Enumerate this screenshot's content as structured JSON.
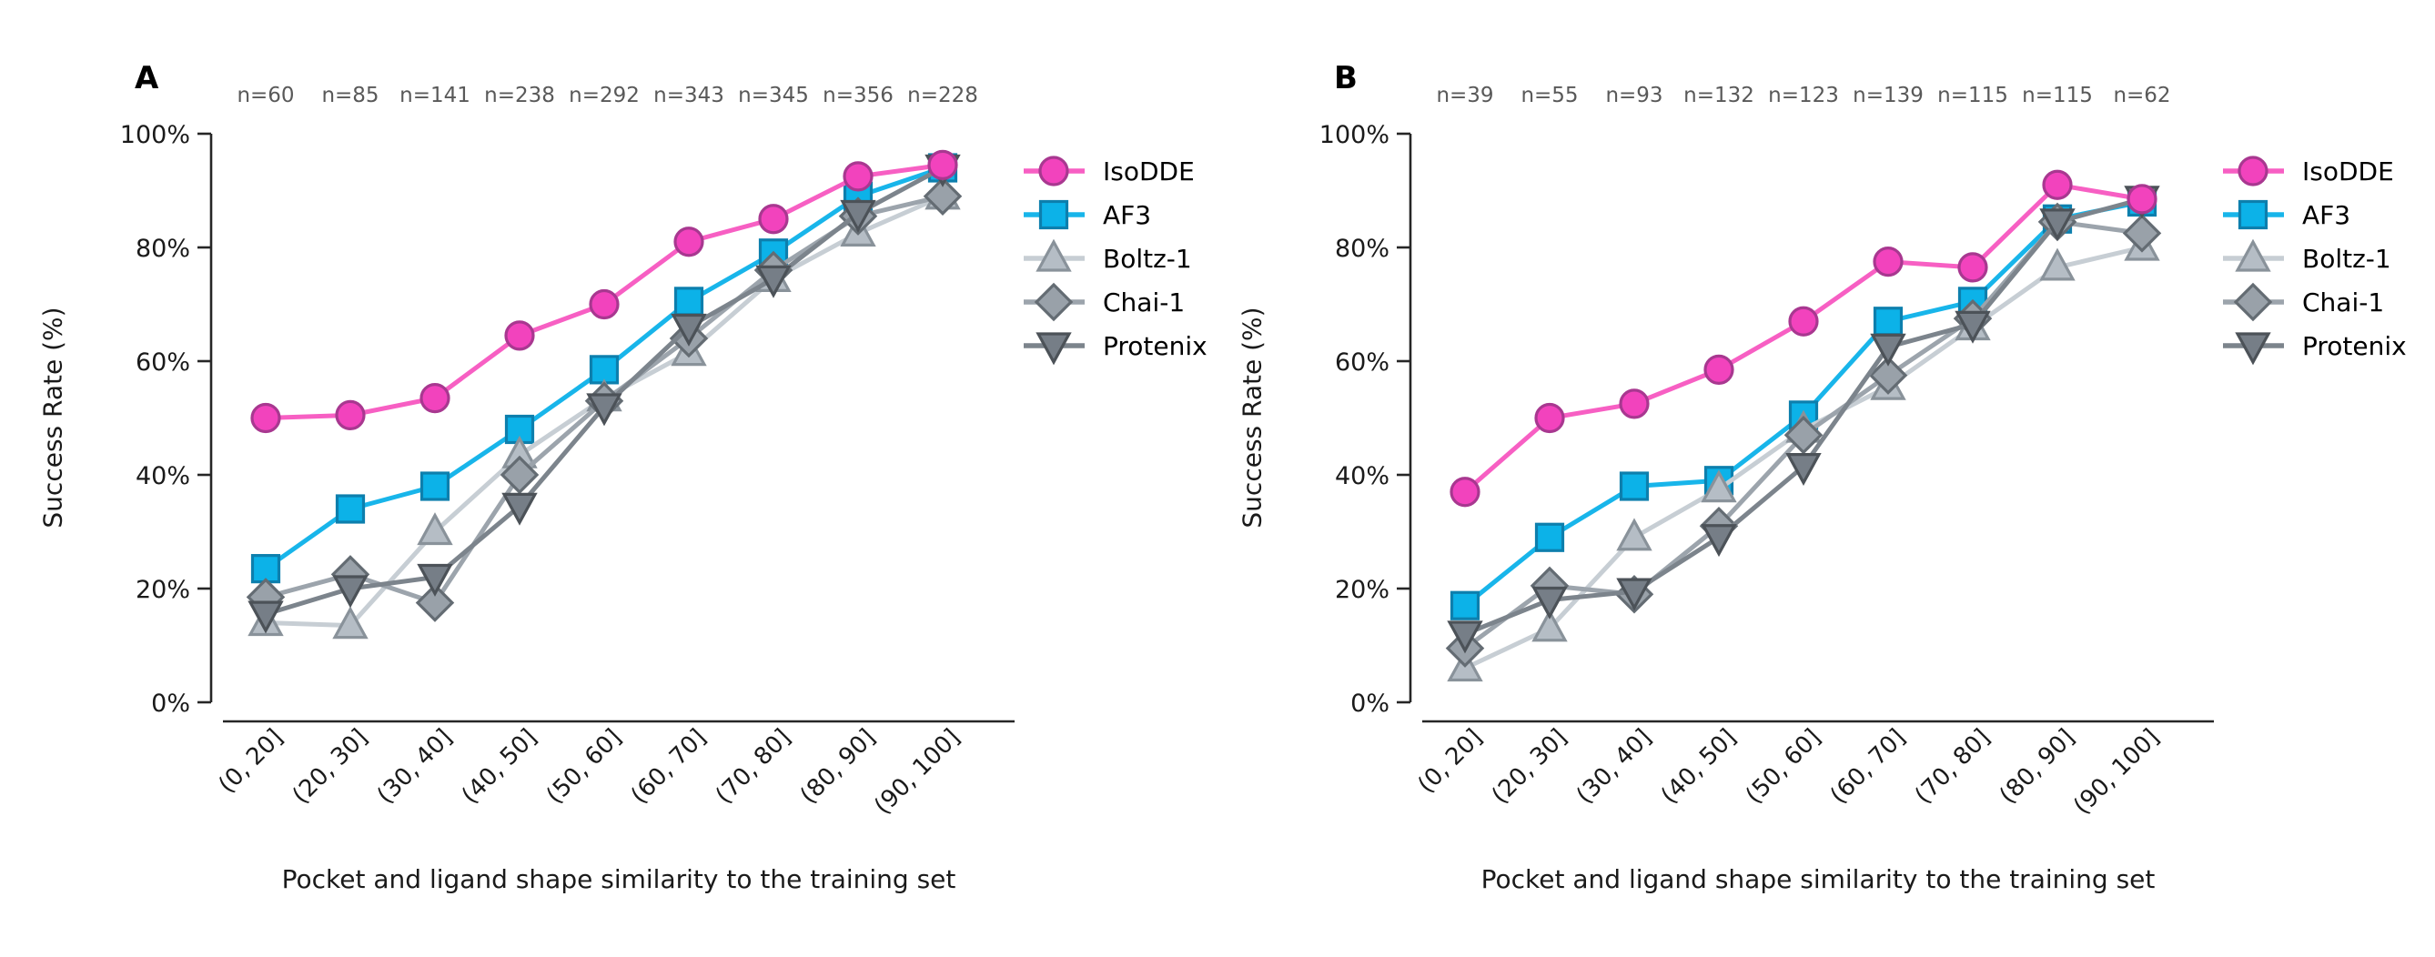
{
  "figure": {
    "ylabel": "Success Rate (%)",
    "xlabel": "Pocket and ligand shape similarity to the training set",
    "background": "#ffffff",
    "axis_color": "#262626",
    "n_label_color": "#595959",
    "legend_position": "right",
    "grid": false,
    "series_meta": [
      {
        "name": "IsoDDE",
        "marker": "circle",
        "line_color": "#f75fc3",
        "fill_color": "#f243bd",
        "edge_color": "#a83890"
      },
      {
        "name": "AF3",
        "marker": "square",
        "line_color": "#18b5ea",
        "fill_color": "#0cb2e8",
        "edge_color": "#0d7fad"
      },
      {
        "name": "Boltz-1",
        "marker": "triangle-up",
        "line_color": "#c7ced4",
        "fill_color": "#b5bdc5",
        "edge_color": "#89929a"
      },
      {
        "name": "Chai-1",
        "marker": "diamond",
        "line_color": "#9ca4ac",
        "fill_color": "#99a1a9",
        "edge_color": "#646c73"
      },
      {
        "name": "Protenix",
        "marker": "triangle-down",
        "line_color": "#7c848c",
        "fill_color": "#767e87",
        "edge_color": "#4c5258"
      }
    ],
    "draw_order": [
      "AF3",
      "Boltz-1",
      "Chai-1",
      "Protenix",
      "IsoDDE"
    ]
  },
  "chart_data": [
    {
      "panel": "A",
      "type": "line",
      "title": "",
      "xlabel": "Pocket and ligand shape similarity to the training set",
      "ylabel": "Success Rate (%)",
      "ylim": [
        0,
        100
      ],
      "yticks": [
        0,
        20,
        40,
        60,
        80,
        100
      ],
      "ytick_labels": [
        "0%",
        "20%",
        "40%",
        "60%",
        "80%",
        "100%"
      ],
      "categories": [
        "(0, 20]",
        "(20, 30]",
        "(30, 40]",
        "(40, 50]",
        "(50, 60]",
        "(60, 70]",
        "(70, 80]",
        "(80, 90]",
        "(90, 100]"
      ],
      "n_labels": [
        "n=60",
        "n=85",
        "n=141",
        "n=238",
        "n=292",
        "n=343",
        "n=345",
        "n=356",
        "n=228"
      ],
      "series": [
        {
          "name": "IsoDDE",
          "values": [
            50,
            50.5,
            53.5,
            64.5,
            70,
            81,
            85,
            92.5,
            94.5
          ]
        },
        {
          "name": "AF3",
          "values": [
            23.5,
            34,
            38,
            48,
            58.5,
            70.5,
            79,
            89,
            94
          ]
        },
        {
          "name": "Boltz-1",
          "values": [
            14,
            13.5,
            30,
            43.5,
            53.5,
            61.5,
            74.5,
            82.5,
            89
          ]
        },
        {
          "name": "Chai-1",
          "values": [
            18.5,
            22.5,
            17.5,
            40,
            53,
            64,
            76,
            85.5,
            89
          ]
        },
        {
          "name": "Protenix",
          "values": [
            15.5,
            20,
            22,
            34.5,
            52,
            66,
            74.5,
            86,
            94
          ]
        }
      ]
    },
    {
      "panel": "B",
      "type": "line",
      "title": "",
      "xlabel": "Pocket and ligand shape similarity to the training set",
      "ylabel": "Success Rate (%)",
      "ylim": [
        0,
        100
      ],
      "yticks": [
        0,
        20,
        40,
        60,
        80,
        100
      ],
      "ytick_labels": [
        "0%",
        "20%",
        "40%",
        "60%",
        "80%",
        "100%"
      ],
      "categories": [
        "(0, 20]",
        "(20, 30]",
        "(30, 40]",
        "(40, 50]",
        "(50, 60]",
        "(60, 70]",
        "(70, 80]",
        "(80, 90]",
        "(90, 100]"
      ],
      "n_labels": [
        "n=39",
        "n=55",
        "n=93",
        "n=132",
        "n=123",
        "n=139",
        "n=115",
        "n=115",
        "n=62"
      ],
      "series": [
        {
          "name": "IsoDDE",
          "values": [
            37,
            50,
            52.5,
            58.5,
            67,
            77.5,
            76.5,
            91,
            88.5
          ]
        },
        {
          "name": "AF3",
          "values": [
            17,
            29,
            38,
            39,
            50.5,
            67,
            70.5,
            85,
            88
          ]
        },
        {
          "name": "Boltz-1",
          "values": [
            6,
            13,
            29,
            37.5,
            48,
            55.5,
            66,
            76.5,
            80
          ]
        },
        {
          "name": "Chai-1",
          "values": [
            9.5,
            20.5,
            19,
            31,
            47,
            57.5,
            67.5,
            84.5,
            82.5
          ]
        },
        {
          "name": "Protenix",
          "values": [
            12,
            18,
            19.5,
            29,
            41.5,
            62.5,
            66.5,
            84.5,
            88.5
          ]
        }
      ]
    }
  ]
}
